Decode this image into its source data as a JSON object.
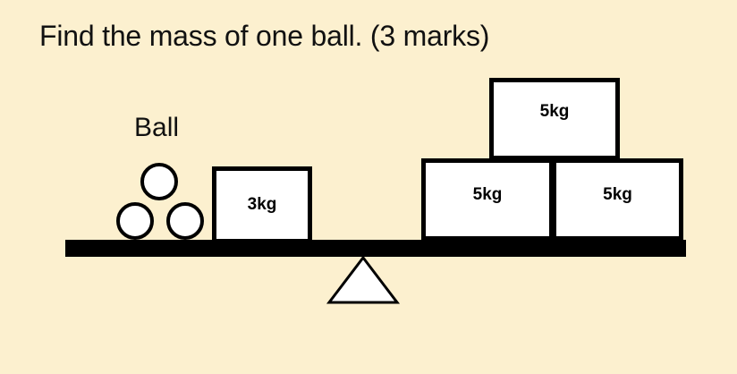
{
  "question": "Find the mass of one ball. (3 marks)",
  "ball_label": "Ball",
  "weights": {
    "left": "3kg",
    "top": "5kg",
    "bottom_left": "5kg",
    "bottom_right": "5kg"
  },
  "colors": {
    "background": "#fcf0cf",
    "stroke": "#000000",
    "fill": "#ffffff"
  }
}
